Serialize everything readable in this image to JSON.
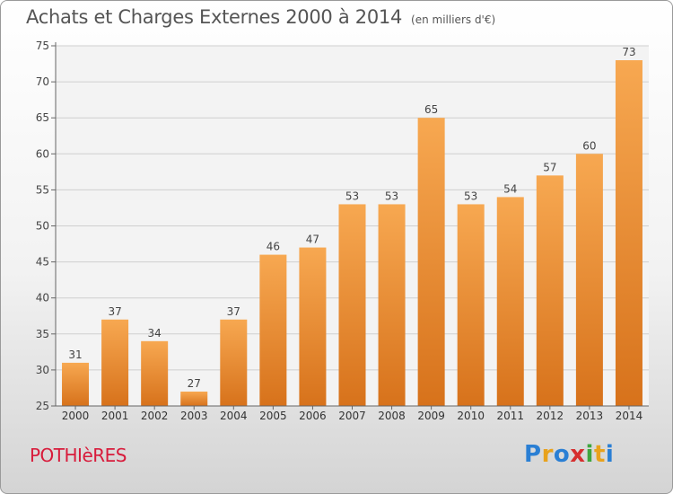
{
  "chart_data": {
    "type": "bar",
    "title": "Achats et Charges Externes 2000 à 2014",
    "unit_label": "(en milliers d'€)",
    "categories": [
      "2000",
      "2001",
      "2002",
      "2003",
      "2004",
      "2005",
      "2006",
      "2007",
      "2008",
      "2009",
      "2010",
      "2011",
      "2012",
      "2013",
      "2014"
    ],
    "values": [
      31,
      37,
      34,
      27,
      37,
      46,
      47,
      53,
      53,
      65,
      53,
      54,
      57,
      60,
      73
    ],
    "ylim": [
      25,
      75
    ],
    "yticks": [
      25,
      30,
      35,
      40,
      45,
      50,
      55,
      60,
      65,
      70,
      75
    ],
    "grid": true,
    "bar_color": "#f0943a"
  },
  "footer": {
    "commune": "POTHIèRES",
    "logo_letters": [
      "P",
      "r",
      "o",
      "x",
      "i",
      "t",
      "i"
    ],
    "logo_colors": [
      "#2a7fd4",
      "#e8a21c",
      "#2a7fd4",
      "#d62f2f",
      "#3ea63e",
      "#e8a21c",
      "#2a7fd4"
    ]
  }
}
